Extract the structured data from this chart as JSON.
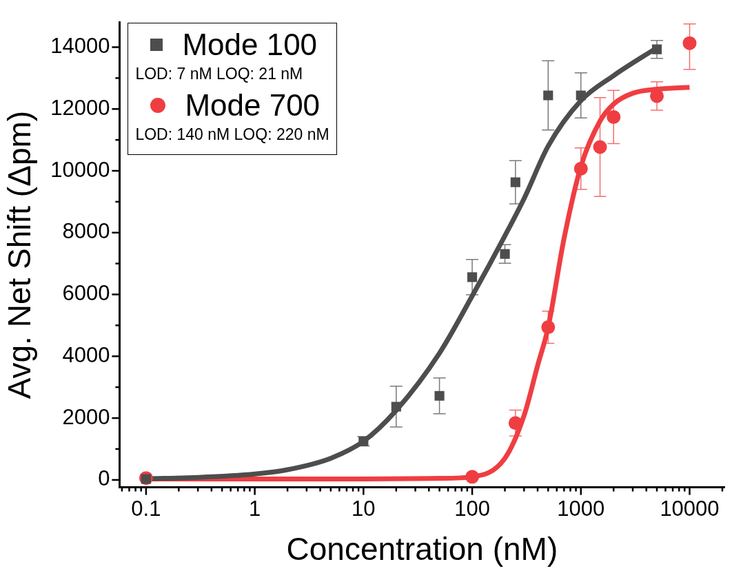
{
  "chart_data": {
    "type": "scatter",
    "xlabel": "Concentration (nM)",
    "ylabel": "Avg. Net Shift (Δpm)",
    "log": "x",
    "grid": false,
    "legend": "top left",
    "xlim": [
      0.057,
      21000
    ],
    "ylim": [
      -240,
      14800
    ],
    "xticks": [
      {
        "value": 0.06,
        "label": null
      },
      {
        "value": 0.07,
        "label": null
      },
      {
        "value": 0.08,
        "label": null
      },
      {
        "value": 0.09,
        "label": null
      },
      0.1,
      {
        "value": 0.2,
        "label": null
      },
      {
        "value": 0.3,
        "label": null
      },
      {
        "value": 0.4,
        "label": null
      },
      {
        "value": 0.5,
        "label": null
      },
      {
        "value": 0.6,
        "label": null
      },
      {
        "value": 0.7,
        "label": null
      },
      {
        "value": 0.8,
        "label": null
      },
      {
        "value": 0.9,
        "label": null
      },
      1,
      {
        "value": 2,
        "label": null
      },
      {
        "value": 3,
        "label": null
      },
      {
        "value": 4,
        "label": null
      },
      {
        "value": 5,
        "label": null
      },
      {
        "value": 6,
        "label": null
      },
      {
        "value": 7,
        "label": null
      },
      {
        "value": 8,
        "label": null
      },
      {
        "value": 9,
        "label": null
      },
      10,
      {
        "value": 20,
        "label": null
      },
      {
        "value": 30,
        "label": null
      },
      {
        "value": 40,
        "label": null
      },
      {
        "value": 50,
        "label": null
      },
      {
        "value": 60,
        "label": null
      },
      {
        "value": 70,
        "label": null
      },
      {
        "value": 80,
        "label": null
      },
      {
        "value": 90,
        "label": null
      },
      100,
      {
        "value": 200,
        "label": null
      },
      {
        "value": 300,
        "label": null
      },
      {
        "value": 400,
        "label": null
      },
      {
        "value": 500,
        "label": null
      },
      {
        "value": 600,
        "label": null
      },
      {
        "value": 700,
        "label": null
      },
      {
        "value": 800,
        "label": null
      },
      {
        "value": 900,
        "label": null
      },
      1000,
      {
        "value": 2000,
        "label": null
      },
      {
        "value": 3000,
        "label": null
      },
      {
        "value": 4000,
        "label": null
      },
      {
        "value": 5000,
        "label": null
      },
      {
        "value": 6000,
        "label": null
      },
      {
        "value": 7000,
        "label": null
      },
      {
        "value": 8000,
        "label": null
      },
      {
        "value": 9000,
        "label": null
      },
      10000,
      {
        "value": 20000,
        "label": null
      }
    ],
    "yticks": [
      0,
      {
        "value": 1000,
        "label": null
      },
      2000,
      {
        "value": 3000,
        "label": null
      },
      4000,
      {
        "value": 5000,
        "label": null
      },
      6000,
      {
        "value": 7000,
        "label": null
      },
      8000,
      {
        "value": 9000,
        "label": null
      },
      10000,
      {
        "value": 11000,
        "label": null
      },
      12000,
      {
        "value": 13000,
        "label": null
      },
      14000
    ],
    "annotations": [
      "LOD: 7 nM LOQ: 21 nM",
      "LOD: 140 nM LOQ: 220 nM"
    ],
    "series": [
      {
        "name": "Mode 100",
        "marker": "square",
        "color": "#4d4d4d",
        "x": [
          0.1,
          10,
          20,
          50,
          100,
          200,
          250,
          500,
          1000,
          5000
        ],
        "values": [
          30,
          1250,
          2370,
          2720,
          6560,
          7310,
          9630,
          12440,
          12440,
          13930
        ],
        "errors": [
          null,
          150,
          660,
          580,
          570,
          300,
          700,
          1120,
          730,
          290
        ]
      },
      {
        "name": "Mode 700",
        "marker": "circle",
        "color": "#ef3e42",
        "x": [
          0.1,
          100,
          250,
          500,
          1000,
          1500,
          2000,
          5000,
          10000
        ],
        "values": [
          60,
          100,
          1840,
          4940,
          10070,
          10770,
          11740,
          12420,
          14130
        ],
        "errors": [
          null,
          null,
          420,
          520,
          670,
          1600,
          860,
          460,
          [
            13280,
            14750
          ]
        ]
      },
      {
        "type": "line",
        "marker": "none",
        "color": "#4d4d4d",
        "x": [
          0.1,
          0.3,
          1,
          2,
          5,
          10,
          20,
          50,
          100,
          200,
          300,
          500,
          1000,
          2000,
          5000
        ],
        "values": [
          40,
          80,
          190,
          330,
          700,
          1250,
          2250,
          4100,
          5950,
          7900,
          9100,
          10800,
          12270,
          13080,
          13980
        ]
      },
      {
        "type": "line",
        "marker": "none",
        "color": "#ef3e42",
        "x": [
          0.1,
          1,
          10,
          50,
          100,
          200,
          300,
          400,
          500,
          700,
          1000,
          1500,
          2000,
          3000,
          5000,
          10000
        ],
        "values": [
          30,
          30,
          30,
          50,
          100,
          700,
          2080,
          3700,
          4940,
          7810,
          10140,
          11610,
          12160,
          12510,
          12640,
          12700
        ]
      }
    ]
  }
}
